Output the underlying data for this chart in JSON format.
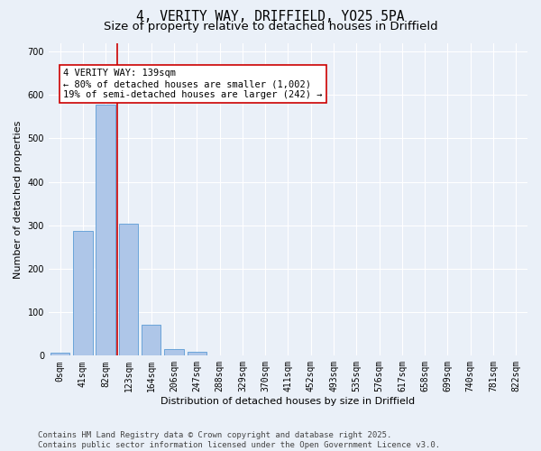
{
  "title_line1": "4, VERITY WAY, DRIFFIELD, YO25 5PA",
  "title_line2": "Size of property relative to detached houses in Driffield",
  "xlabel": "Distribution of detached houses by size in Driffield",
  "ylabel": "Number of detached properties",
  "bar_values": [
    7,
    288,
    577,
    303,
    71,
    16,
    10,
    0,
    0,
    0,
    0,
    0,
    0,
    0,
    0,
    0,
    0,
    0,
    0,
    0,
    0
  ],
  "bar_labels": [
    "0sqm",
    "41sqm",
    "82sqm",
    "123sqm",
    "164sqm",
    "206sqm",
    "247sqm",
    "288sqm",
    "329sqm",
    "370sqm",
    "411sqm",
    "452sqm",
    "493sqm",
    "535sqm",
    "576sqm",
    "617sqm",
    "658sqm",
    "699sqm",
    "740sqm",
    "781sqm",
    "822sqm"
  ],
  "bar_color": "#aec6e8",
  "bar_edge_color": "#5b9bd5",
  "vline_color": "#cc0000",
  "annotation_text": "4 VERITY WAY: 139sqm\n← 80% of detached houses are smaller (1,002)\n19% of semi-detached houses are larger (242) →",
  "annotation_box_color": "#ffffff",
  "annotation_box_edge": "#cc0000",
  "ylim": [
    0,
    720
  ],
  "yticks": [
    0,
    100,
    200,
    300,
    400,
    500,
    600,
    700
  ],
  "background_color": "#eaf0f8",
  "plot_bg_color": "#eaf0f8",
  "footer_text": "Contains HM Land Registry data © Crown copyright and database right 2025.\nContains public sector information licensed under the Open Government Licence v3.0.",
  "title_fontsize": 10.5,
  "subtitle_fontsize": 9.5,
  "axis_label_fontsize": 8,
  "tick_fontsize": 7,
  "annotation_fontsize": 7.5,
  "footer_fontsize": 6.5
}
